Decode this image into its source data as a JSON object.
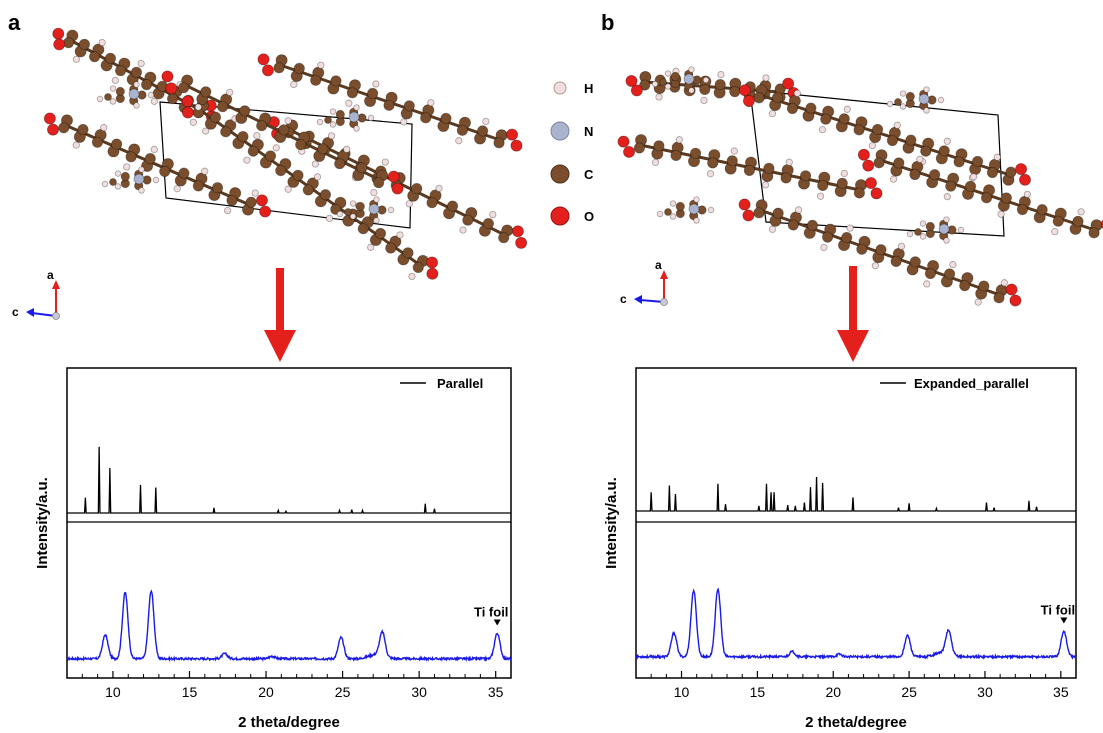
{
  "panels": [
    {
      "letter": "a",
      "axis_a": "a",
      "axis_c": "c",
      "legend_atoms": [
        {
          "label": "H",
          "color": "#f1dede"
        },
        {
          "label": "N",
          "color": "#aab4cf"
        },
        {
          "label": "C",
          "color": "#7a4e2d"
        },
        {
          "label": "O",
          "color": "#e3201c"
        }
      ]
    },
    {
      "letter": "b",
      "axis_a": "a",
      "axis_c": "c"
    }
  ],
  "colors": {
    "carbon": "#7a4e2d",
    "oxygen": "#e3201c",
    "hydrogen": "#f1dede",
    "nitrogen": "#aab4cf",
    "arrow": "#e3201c",
    "simulated": "#000000",
    "experimental": "#1a1ae6"
  },
  "chart_data": [
    {
      "type": "line",
      "xlabel": "2 theta/degree",
      "ylabel": "Intensity/a.u.",
      "xlim": [
        7,
        36
      ],
      "xticks": [
        10,
        15,
        20,
        25,
        30,
        35
      ],
      "grid": false,
      "legend_placement": "top-right",
      "series": [
        {
          "name": "Parallel",
          "kind": "stick",
          "peaks": [
            [
              8.2,
              0.18
            ],
            [
              9.1,
              0.78
            ],
            [
              9.8,
              0.53
            ],
            [
              11.8,
              0.33
            ],
            [
              12.8,
              0.3
            ],
            [
              16.6,
              0.06
            ],
            [
              20.8,
              0.03
            ],
            [
              21.3,
              0.02
            ],
            [
              24.8,
              0.03
            ],
            [
              25.6,
              0.04
            ],
            [
              26.3,
              0.03
            ],
            [
              30.4,
              0.11
            ],
            [
              31.0,
              0.05
            ]
          ]
        },
        {
          "kind": "profile",
          "peaks": [
            [
              9.5,
              0.28
            ],
            [
              10.8,
              0.78
            ],
            [
              12.5,
              0.8
            ],
            [
              17.3,
              0.06
            ],
            [
              20.4,
              0.03
            ],
            [
              24.9,
              0.25
            ],
            [
              27.6,
              0.28
            ],
            [
              35.1,
              0.3
            ]
          ],
          "annotation": {
            "text": "Ti foil",
            "x": 35.1
          }
        }
      ]
    },
    {
      "type": "line",
      "xlabel": "2 theta/degree",
      "ylabel": "Intensity/a.u.",
      "xlim": [
        7,
        36
      ],
      "xticks": [
        10,
        15,
        20,
        25,
        30,
        35
      ],
      "grid": false,
      "legend_placement": "top-right",
      "series": [
        {
          "name": "Expanded_parallel",
          "kind": "stick",
          "peaks": [
            [
              8.0,
              0.22
            ],
            [
              9.2,
              0.3
            ],
            [
              9.6,
              0.2
            ],
            [
              12.4,
              0.32
            ],
            [
              12.9,
              0.08
            ],
            [
              15.1,
              0.06
            ],
            [
              15.6,
              0.32
            ],
            [
              15.9,
              0.22
            ],
            [
              16.1,
              0.22
            ],
            [
              17.0,
              0.07
            ],
            [
              17.5,
              0.06
            ],
            [
              18.1,
              0.1
            ],
            [
              18.5,
              0.28
            ],
            [
              18.9,
              0.4
            ],
            [
              19.3,
              0.33
            ],
            [
              21.3,
              0.16
            ],
            [
              24.3,
              0.04
            ],
            [
              25.0,
              0.09
            ],
            [
              26.8,
              0.03
            ],
            [
              30.1,
              0.1
            ],
            [
              30.6,
              0.04
            ],
            [
              32.9,
              0.12
            ],
            [
              33.4,
              0.05
            ]
          ]
        },
        {
          "kind": "profile",
          "peaks": [
            [
              9.5,
              0.28
            ],
            [
              10.8,
              0.78
            ],
            [
              12.4,
              0.8
            ],
            [
              17.3,
              0.06
            ],
            [
              20.4,
              0.03
            ],
            [
              24.9,
              0.25
            ],
            [
              27.6,
              0.28
            ],
            [
              35.2,
              0.3
            ]
          ],
          "annotation": {
            "text": "Ti foil",
            "x": 35.2
          }
        }
      ]
    }
  ]
}
